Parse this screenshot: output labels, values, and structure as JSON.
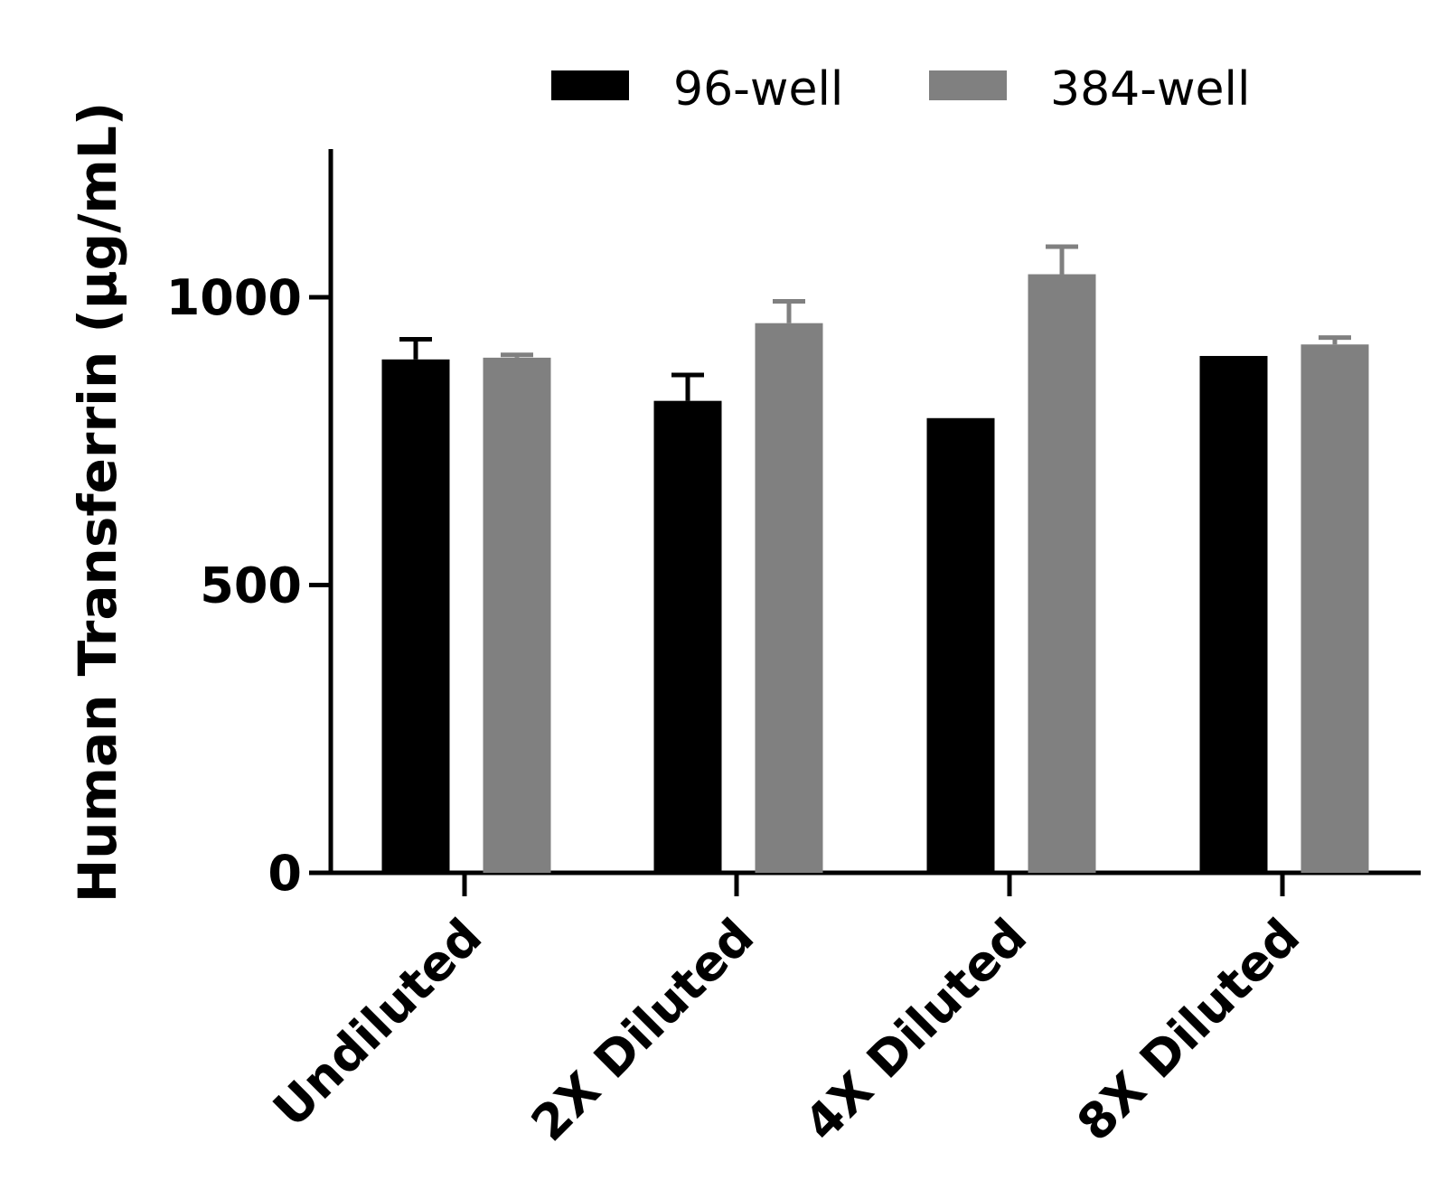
{
  "chart_data": {
    "type": "bar",
    "title": "",
    "xlabel": "",
    "ylabel": "Human Transferrin (μg/mL)",
    "ylim": [
      0,
      1250
    ],
    "yticks": [
      0,
      500,
      1000
    ],
    "grid": false,
    "legend_position": "top",
    "categories": [
      "Undiluted",
      "2X Diluted",
      "4X Diluted",
      "8X Diluted"
    ],
    "series": [
      {
        "name": "96-well",
        "color": "#000000",
        "values": [
          892,
          820,
          790,
          898
        ],
        "errors": [
          35,
          45,
          0,
          0
        ]
      },
      {
        "name": "384-well",
        "color": "#808080",
        "values": [
          895,
          955,
          1040,
          918
        ],
        "errors": [
          5,
          38,
          48,
          12
        ]
      }
    ]
  }
}
